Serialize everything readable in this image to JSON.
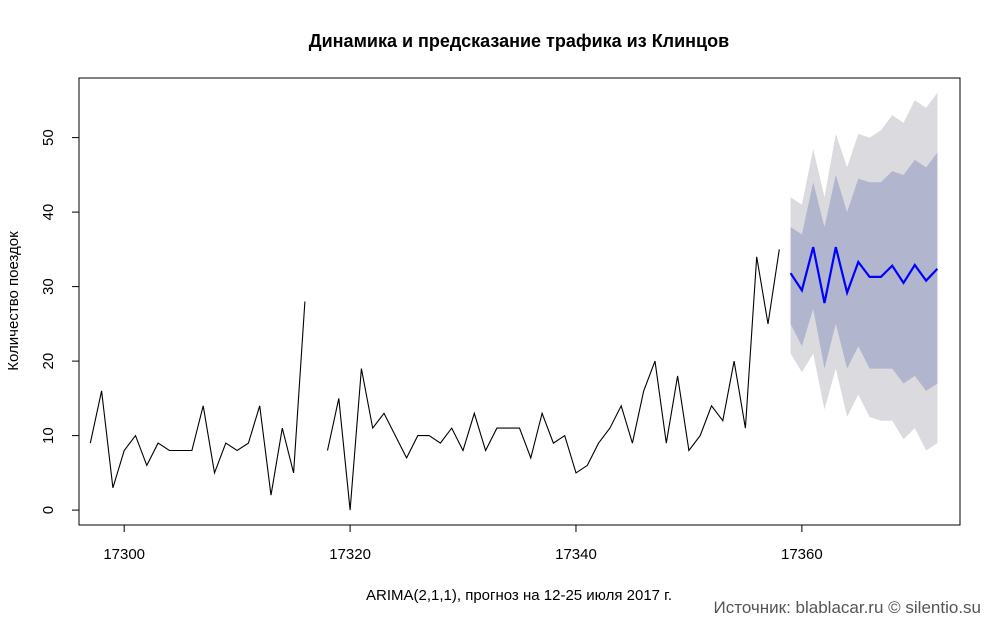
{
  "chart_data": {
    "type": "line",
    "title": "Динамика и предсказание трафика из Клинцов",
    "xlabel": "ARIMA(2,1,1), прогноз на 12-25 июля 2017 г.",
    "ylabel": "Количество поездок",
    "source_note": "Источник: blablacar.ru © silentio.su",
    "xlim": [
      17296,
      17374
    ],
    "ylim": [
      -2,
      58
    ],
    "x_ticks": [
      17300,
      17320,
      17340,
      17360
    ],
    "y_ticks": [
      0,
      10,
      20,
      30,
      40,
      50
    ],
    "observed": {
      "x_start": 17297,
      "values": [
        9,
        16,
        3,
        8,
        10,
        6,
        9,
        8,
        8,
        8,
        14,
        5,
        9,
        8,
        9,
        14,
        2,
        11,
        5,
        28,
        null,
        8,
        15,
        0,
        19,
        11,
        13,
        10,
        7,
        10,
        10,
        9,
        11,
        8,
        13,
        8,
        11,
        11,
        11,
        7,
        13,
        9,
        10,
        5,
        6,
        9,
        11,
        14,
        9,
        16,
        20,
        9,
        18,
        8,
        10,
        14,
        12,
        20,
        11,
        34,
        25,
        35
      ]
    },
    "forecast": {
      "x_start": 17359,
      "mean": [
        31.8,
        29.5,
        35.3,
        27.8,
        35.3,
        29.2,
        33.3,
        31.3,
        31.3,
        32.8,
        30.5,
        32.9,
        30.8,
        32.4
      ],
      "lower80": [
        25,
        22,
        27,
        19,
        25,
        19,
        22,
        19,
        19,
        19,
        17,
        18,
        16,
        17
      ],
      "upper80": [
        38,
        37,
        44,
        38,
        45,
        40,
        44.5,
        44,
        44,
        45.5,
        45,
        47,
        46,
        48
      ],
      "lower95": [
        21,
        18.5,
        21,
        13.5,
        19,
        12.5,
        15.5,
        12.5,
        12,
        12,
        9.5,
        11,
        8,
        9
      ],
      "upper95": [
        42,
        41,
        48.5,
        42,
        50.5,
        46,
        50.5,
        50,
        51,
        53,
        52,
        55,
        54,
        56
      ]
    },
    "colors": {
      "observed": "#000000",
      "forecast": "#0000ff",
      "band80": "#b1b5ce",
      "band95": "#dbdbdf",
      "source_note": "#555555"
    }
  }
}
